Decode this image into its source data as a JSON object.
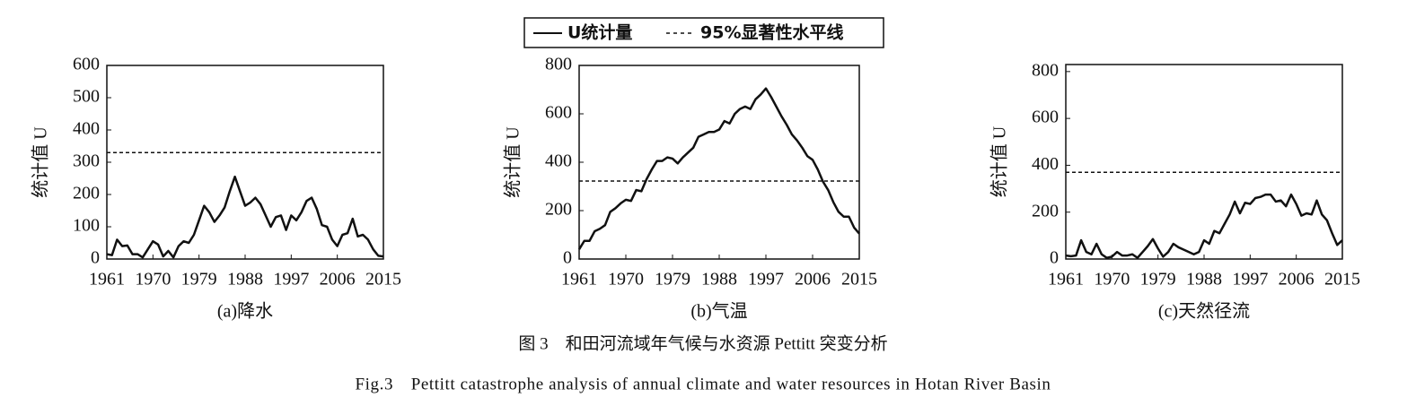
{
  "chart_data": [
    {
      "type": "line",
      "title": "(a)降水",
      "y_label": "统计值 U",
      "x": [
        1961,
        1962,
        1963,
        1964,
        1965,
        1966,
        1967,
        1968,
        1969,
        1970,
        1971,
        1972,
        1973,
        1974,
        1975,
        1976,
        1977,
        1978,
        1979,
        1980,
        1981,
        1982,
        1983,
        1984,
        1985,
        1986,
        1987,
        1988,
        1989,
        1990,
        1991,
        1992,
        1993,
        1994,
        1995,
        1996,
        1997,
        1998,
        1999,
        2000,
        2001,
        2002,
        2003,
        2004,
        2005,
        2006,
        2007,
        2008,
        2009,
        2010,
        2011,
        2012,
        2013,
        2014,
        2015
      ],
      "xlim": [
        1961,
        2015
      ],
      "xticks": [
        1961,
        1970,
        1979,
        1988,
        1997,
        2006,
        2015
      ],
      "ylim": [
        0,
        600
      ],
      "yticks": [
        0,
        100,
        200,
        300,
        400,
        500,
        600
      ],
      "series": [
        {
          "name": "U统计量",
          "color": "#111111",
          "style": "solid",
          "values": [
            15,
            12,
            60,
            40,
            42,
            15,
            15,
            5,
            30,
            55,
            45,
            8,
            25,
            5,
            40,
            55,
            50,
            75,
            120,
            165,
            145,
            115,
            135,
            160,
            210,
            255,
            210,
            165,
            175,
            190,
            170,
            135,
            100,
            130,
            135,
            90,
            135,
            120,
            145,
            180,
            190,
            155,
            105,
            100,
            60,
            40,
            75,
            80,
            125,
            70,
            75,
            60,
            30,
            10,
            8
          ]
        },
        {
          "name": "95%显著性水平线",
          "color": "#111111",
          "style": "dashed",
          "x": [
            1961,
            2015
          ],
          "values": [
            330,
            330
          ]
        }
      ]
    },
    {
      "type": "line",
      "title": "(b)气温",
      "y_label": "统计值 U",
      "x": [
        1961,
        1962,
        1963,
        1964,
        1965,
        1966,
        1967,
        1968,
        1969,
        1970,
        1971,
        1972,
        1973,
        1974,
        1975,
        1976,
        1977,
        1978,
        1979,
        1980,
        1981,
        1982,
        1983,
        1984,
        1985,
        1986,
        1987,
        1988,
        1989,
        1990,
        1991,
        1992,
        1993,
        1994,
        1995,
        1996,
        1997,
        1998,
        1999,
        2000,
        2001,
        2002,
        2003,
        2004,
        2005,
        2006,
        2007,
        2008,
        2009,
        2010,
        2011,
        2012,
        2013,
        2014,
        2015
      ],
      "xlim": [
        1961,
        2015
      ],
      "xticks": [
        1961,
        1970,
        1979,
        1988,
        1997,
        2006,
        2015
      ],
      "ylim": [
        0,
        800
      ],
      "yticks": [
        0,
        200,
        400,
        600,
        800
      ],
      "series": [
        {
          "name": "U统计量",
          "color": "#111111",
          "style": "solid",
          "values": [
            40,
            75,
            75,
            115,
            125,
            140,
            195,
            210,
            230,
            245,
            240,
            285,
            280,
            330,
            370,
            405,
            405,
            420,
            415,
            395,
            420,
            440,
            460,
            505,
            515,
            525,
            525,
            535,
            570,
            560,
            600,
            620,
            630,
            620,
            660,
            680,
            705,
            670,
            630,
            590,
            555,
            515,
            490,
            460,
            425,
            410,
            370,
            320,
            285,
            235,
            195,
            175,
            175,
            130,
            105
          ]
        },
        {
          "name": "95%显著性水平线",
          "color": "#111111",
          "style": "dashed",
          "x": [
            1961,
            2015
          ],
          "values": [
            322,
            322
          ]
        }
      ]
    },
    {
      "type": "line",
      "title": "(c)天然径流",
      "y_label": "统计值 U",
      "x": [
        1961,
        1962,
        1963,
        1964,
        1965,
        1966,
        1967,
        1968,
        1969,
        1970,
        1971,
        1972,
        1973,
        1974,
        1975,
        1976,
        1977,
        1978,
        1979,
        1980,
        1981,
        1982,
        1983,
        1984,
        1985,
        1986,
        1987,
        1988,
        1989,
        1990,
        1991,
        1992,
        1993,
        1994,
        1995,
        1996,
        1997,
        1998,
        1999,
        2000,
        2001,
        2002,
        2003,
        2004,
        2005,
        2006,
        2007,
        2008,
        2009,
        2010,
        2011,
        2012,
        2013,
        2014,
        2015
      ],
      "xlim": [
        1961,
        2015
      ],
      "xticks": [
        1961,
        1970,
        1979,
        1988,
        1997,
        2006,
        2015
      ],
      "ylim": [
        0,
        830
      ],
      "yticks": [
        0,
        200,
        400,
        600,
        800
      ],
      "series": [
        {
          "name": "U统计量",
          "color": "#111111",
          "style": "solid",
          "values": [
            15,
            12,
            15,
            80,
            30,
            20,
            65,
            20,
            5,
            10,
            30,
            15,
            15,
            20,
            5,
            30,
            55,
            85,
            45,
            10,
            30,
            65,
            50,
            40,
            30,
            20,
            30,
            80,
            65,
            120,
            110,
            150,
            190,
            245,
            195,
            240,
            235,
            260,
            265,
            275,
            275,
            245,
            250,
            225,
            275,
            235,
            185,
            195,
            190,
            250,
            190,
            165,
            110,
            60,
            80
          ]
        },
        {
          "name": "95%显著性水平线",
          "color": "#111111",
          "style": "dashed",
          "x": [
            1961,
            2015
          ],
          "values": [
            370,
            370
          ]
        }
      ]
    }
  ],
  "figure": {
    "caption_zh": "图 3　和田河流域年气候与水资源 Pettitt 突变分析",
    "caption_en": "Fig.3　Pettitt catastrophe analysis of annual climate and water resources in Hotan River Basin"
  }
}
